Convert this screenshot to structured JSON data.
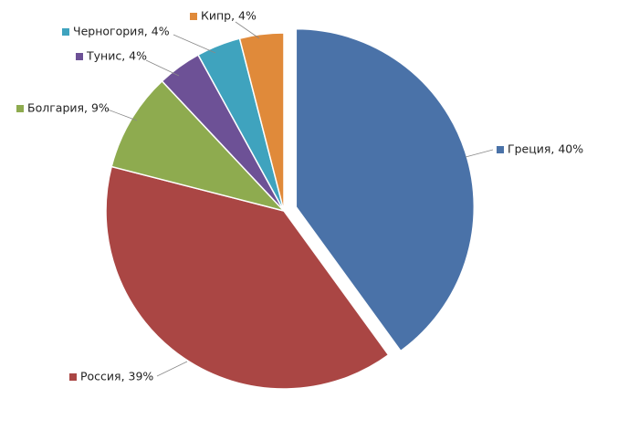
{
  "chart_data": {
    "type": "pie",
    "values": [
      40,
      39,
      9,
      4,
      4,
      4
    ],
    "value_labels": [
      "Греция, 40%",
      "Россия, 39%",
      "Болгария, 9%",
      "Тунис, 4%",
      "Черногория, 4%",
      "Кипр, 4%"
    ],
    "colors": [
      "#4a72a8",
      "#aa4644",
      "#8eab4f",
      "#6d5196",
      "#3fa3be",
      "#e08a3a"
    ],
    "exploded": [
      0
    ]
  }
}
